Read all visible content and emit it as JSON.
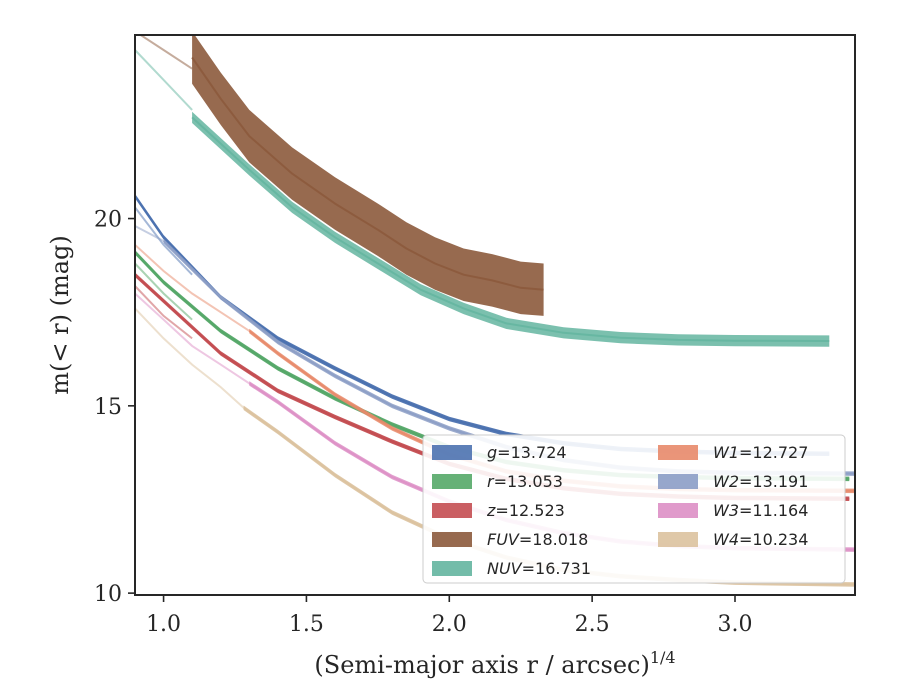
{
  "chart_data": {
    "type": "line",
    "xlabel": "(Semi-major axis r / arcsec)",
    "xlabel_sup": "1/4",
    "ylabel": "m(< r) (mag)",
    "xlim": [
      0.9,
      3.42
    ],
    "ylim": [
      24.9,
      9.95
    ],
    "y_inverted": true,
    "x_ticks": [
      "1.0",
      "1.5",
      "2.0",
      "2.5",
      "3.0"
    ],
    "y_ticks": [
      "10",
      "15",
      "20"
    ],
    "legend": {
      "placement": "lower-right",
      "columns": 2
    },
    "series": [
      {
        "name": "g = 13.724",
        "color": "#4c72b0",
        "opacity": 0.95,
        "band": 0.06,
        "x": [
          0.9,
          1.0,
          1.2,
          1.4,
          1.6,
          1.8,
          2.0,
          2.2,
          2.4,
          2.6,
          2.8,
          3.0,
          3.33
        ],
        "y": [
          20.6,
          19.5,
          17.9,
          16.8,
          16.0,
          15.25,
          14.65,
          14.25,
          14.0,
          13.85,
          13.78,
          13.74,
          13.72
        ]
      },
      {
        "name": "r = 13.053",
        "color": "#55a868",
        "opacity": 0.95,
        "band": 0.06,
        "x": [
          0.9,
          1.0,
          1.2,
          1.4,
          1.6,
          1.8,
          2.0,
          2.2,
          2.4,
          2.6,
          2.8,
          3.0,
          3.4
        ],
        "y": [
          19.1,
          18.3,
          17.0,
          16.0,
          15.2,
          14.5,
          13.9,
          13.5,
          13.28,
          13.15,
          13.1,
          13.07,
          13.05
        ]
      },
      {
        "name": "z = 12.523",
        "color": "#c44e52",
        "opacity": 0.95,
        "band": 0.06,
        "x": [
          0.9,
          1.0,
          1.2,
          1.4,
          1.6,
          1.8,
          2.0,
          2.2,
          2.4,
          2.6,
          2.8,
          3.0,
          3.4
        ],
        "y": [
          18.5,
          17.8,
          16.4,
          15.4,
          14.7,
          14.05,
          13.45,
          13.05,
          12.8,
          12.65,
          12.58,
          12.54,
          12.52
        ]
      },
      {
        "name": "FUV = 18.018",
        "color": "#8c5a3c",
        "opacity": 0.9,
        "band": 0.7,
        "x": [
          1.1,
          1.2,
          1.3,
          1.45,
          1.6,
          1.75,
          1.85,
          1.95,
          2.05,
          2.15,
          2.25,
          2.33
        ],
        "y": [
          24.3,
          23.2,
          22.2,
          21.2,
          20.4,
          19.7,
          19.2,
          18.8,
          18.5,
          18.35,
          18.15,
          18.1
        ]
      },
      {
        "name": "NUV = 16.731",
        "color": "#64b5a0",
        "opacity": 0.85,
        "band": 0.15,
        "x": [
          1.1,
          1.2,
          1.3,
          1.45,
          1.6,
          1.75,
          1.9,
          2.05,
          2.2,
          2.4,
          2.6,
          2.8,
          3.0,
          3.33
        ],
        "y": [
          22.7,
          22.0,
          21.3,
          20.3,
          19.5,
          18.8,
          18.1,
          17.6,
          17.2,
          16.95,
          16.82,
          16.76,
          16.74,
          16.73
        ]
      },
      {
        "name": "W1 = 12.727",
        "color": "#e8896a",
        "opacity": 0.85,
        "band": 0.06,
        "x": [
          1.3,
          1.4,
          1.6,
          1.8,
          2.0,
          2.2,
          2.4,
          2.6,
          2.8,
          3.0,
          3.42
        ],
        "y": [
          17.0,
          16.4,
          15.3,
          14.4,
          13.7,
          13.25,
          13.0,
          12.85,
          12.78,
          12.75,
          12.73
        ]
      },
      {
        "name": "W2 = 13.191",
        "color": "#8c9dc6",
        "opacity": 0.85,
        "band": 0.06,
        "x": [
          1.0,
          1.2,
          1.4,
          1.6,
          1.8,
          2.0,
          2.2,
          2.4,
          2.6,
          2.8,
          3.0,
          3.42
        ],
        "y": [
          19.4,
          17.9,
          16.7,
          15.8,
          15.0,
          14.4,
          13.9,
          13.55,
          13.35,
          13.25,
          13.21,
          13.19
        ]
      },
      {
        "name": "W3 = 11.164",
        "color": "#dd8fc5",
        "opacity": 0.85,
        "band": 0.06,
        "x": [
          1.3,
          1.4,
          1.6,
          1.8,
          2.0,
          2.2,
          2.4,
          2.6,
          2.8,
          3.0,
          3.42
        ],
        "y": [
          15.6,
          15.1,
          14.0,
          13.1,
          12.45,
          11.95,
          11.6,
          11.38,
          11.26,
          11.2,
          11.16
        ]
      },
      {
        "name": "W4 = 10.234",
        "color": "#dcc29e",
        "opacity": 0.9,
        "band": 0.06,
        "x": [
          1.28,
          1.4,
          1.6,
          1.8,
          2.0,
          2.2,
          2.4,
          2.6,
          2.8,
          3.0,
          3.42
        ],
        "y": [
          14.95,
          14.3,
          13.15,
          12.15,
          11.45,
          10.95,
          10.62,
          10.45,
          10.35,
          10.28,
          10.23
        ]
      }
    ],
    "inner_extensions": [
      {
        "series": 0,
        "x": [
          0.9,
          1.0,
          1.1
        ],
        "y": [
          20.3,
          19.3,
          18.5
        ]
      },
      {
        "series": 1,
        "x": [
          0.9,
          1.0,
          1.1
        ],
        "y": [
          18.8,
          18.0,
          17.3
        ]
      },
      {
        "series": 2,
        "x": [
          0.9,
          1.0,
          1.1
        ],
        "y": [
          18.2,
          17.4,
          16.8
        ]
      },
      {
        "series": 3,
        "x": [
          0.9,
          1.0,
          1.1
        ],
        "y": [
          25.0,
          24.5,
          24.0
        ]
      },
      {
        "series": 4,
        "x": [
          0.9,
          1.0,
          1.1
        ],
        "y": [
          24.5,
          23.7,
          22.9
        ]
      },
      {
        "series": 5,
        "x": [
          0.9,
          1.0,
          1.1,
          1.2,
          1.3
        ],
        "y": [
          19.3,
          18.6,
          18.0,
          17.5,
          17.0
        ]
      },
      {
        "series": 6,
        "x": [
          0.9,
          1.0
        ],
        "y": [
          19.8,
          19.4
        ]
      },
      {
        "series": 7,
        "x": [
          0.9,
          1.0,
          1.1,
          1.2,
          1.3
        ],
        "y": [
          18.0,
          17.3,
          16.6,
          16.1,
          15.6
        ]
      },
      {
        "series": 8,
        "x": [
          0.9,
          1.0,
          1.1,
          1.2,
          1.28
        ],
        "y": [
          17.6,
          16.8,
          16.1,
          15.5,
          14.95
        ]
      }
    ]
  }
}
